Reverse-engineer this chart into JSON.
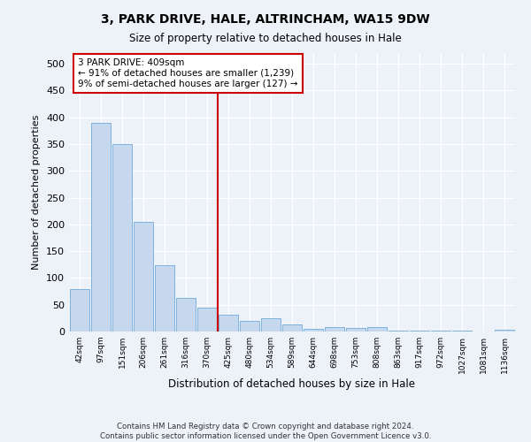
{
  "title": "3, PARK DRIVE, HALE, ALTRINCHAM, WA15 9DW",
  "subtitle": "Size of property relative to detached houses in Hale",
  "xlabel": "Distribution of detached houses by size in Hale",
  "ylabel": "Number of detached properties",
  "footer_line1": "Contains HM Land Registry data © Crown copyright and database right 2024.",
  "footer_line2": "Contains public sector information licensed under the Open Government Licence v3.0.",
  "annotation_title": "3 PARK DRIVE: 409sqm",
  "annotation_line1": "← 91% of detached houses are smaller (1,239)",
  "annotation_line2": "9% of semi-detached houses are larger (127) →",
  "bar_labels": [
    "42sqm",
    "97sqm",
    "151sqm",
    "206sqm",
    "261sqm",
    "316sqm",
    "370sqm",
    "425sqm",
    "480sqm",
    "534sqm",
    "589sqm",
    "644sqm",
    "698sqm",
    "753sqm",
    "808sqm",
    "863sqm",
    "917sqm",
    "972sqm",
    "1027sqm",
    "1081sqm",
    "1136sqm"
  ],
  "bar_values": [
    80,
    390,
    350,
    205,
    123,
    63,
    45,
    32,
    20,
    25,
    14,
    5,
    8,
    6,
    9,
    1,
    2,
    1,
    1,
    0,
    3
  ],
  "bar_color": "#c5d8ed",
  "bar_edge_color": "#5a9fd4",
  "vline_x_index": 7,
  "vline_color": "#cc0000",
  "annotation_box_edge_color": "#cc0000",
  "background_color": "#edf2f9",
  "grid_color": "#ffffff",
  "ylim": [
    0,
    520
  ],
  "yticks": [
    0,
    50,
    100,
    150,
    200,
    250,
    300,
    350,
    400,
    450,
    500
  ]
}
